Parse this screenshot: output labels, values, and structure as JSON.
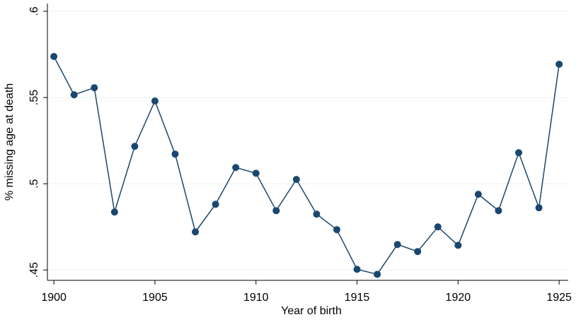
{
  "chart_data": {
    "type": "line",
    "x_label": "Year of birth",
    "y_label": "% missing age at death",
    "x": [
      1900,
      1901,
      1902,
      1903,
      1904,
      1905,
      1906,
      1907,
      1908,
      1909,
      1910,
      1911,
      1912,
      1913,
      1914,
      1915,
      1916,
      1917,
      1918,
      1919,
      1920,
      1921,
      1922,
      1923,
      1924,
      1925
    ],
    "series": [
      {
        "color": "#1a476f",
        "values": [
          0.5738,
          0.5516,
          0.5557,
          0.4836,
          0.5217,
          0.548,
          0.5172,
          0.4721,
          0.4881,
          0.5094,
          0.5061,
          0.4844,
          0.5025,
          0.4824,
          0.4734,
          0.4504,
          0.4475,
          0.4648,
          0.4607,
          0.475,
          0.4643,
          0.4939,
          0.4844,
          0.518,
          0.4861,
          0.5693
        ]
      }
    ],
    "xlim": [
      1899.68,
      1925.45
    ],
    "ylim": [
      0.444,
      0.6045
    ],
    "xticks": [
      1900,
      1905,
      1910,
      1915,
      1920,
      1925
    ],
    "yticks": [
      {
        "value": 0.45,
        "label": ".45"
      },
      {
        "value": 0.5,
        "label": ".5"
      },
      {
        "value": 0.55,
        "label": ".55"
      },
      {
        "value": 0.6,
        "label": ".6"
      }
    ],
    "grid": true
  }
}
